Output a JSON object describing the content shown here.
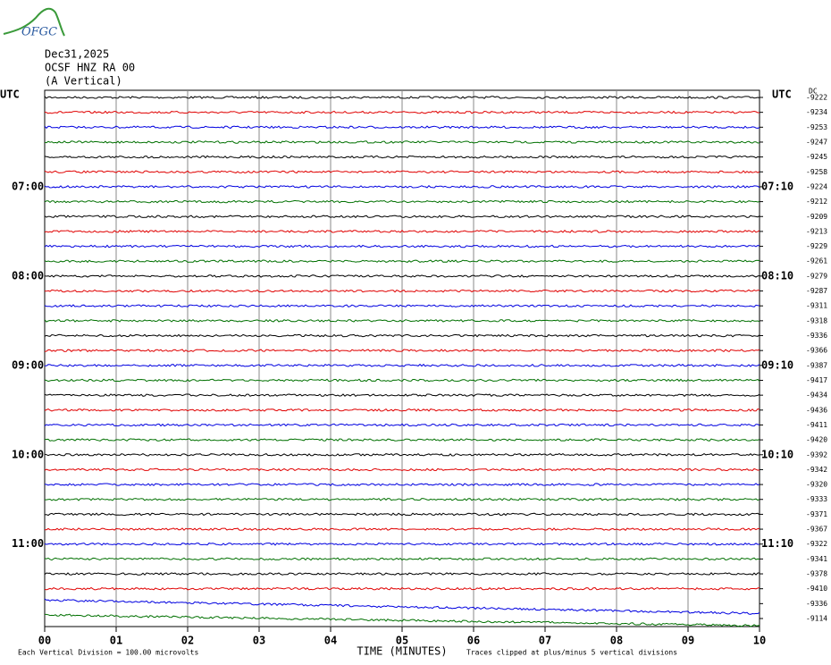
{
  "header": {
    "logo": "OFGC",
    "date": "Dec31,2025",
    "station": "OCSF HNZ RA 00",
    "component": "(A Vertical)"
  },
  "axes": {
    "left_title": "UTC",
    "right_title": "UTC",
    "dc_title": "DC",
    "left_hours": [
      "07:00",
      "08:00",
      "09:00",
      "10:00",
      "11:00"
    ],
    "right_hours": [
      "07:10",
      "08:10",
      "09:10",
      "10:10",
      "11:10"
    ],
    "x_ticks": [
      "00",
      "01",
      "02",
      "03",
      "04",
      "05",
      "06",
      "07",
      "08",
      "09",
      "10"
    ],
    "x_title": "TIME (MINUTES)"
  },
  "dc_offsets": [
    "-9222",
    "-9234",
    "-9253",
    "-9247",
    "-9245",
    "-9258",
    "-9224",
    "-9212",
    "-9209",
    "-9213",
    "-9229",
    "-9261",
    "-9279",
    "-9287",
    "-9311",
    "-9318",
    "-9336",
    "-9366",
    "-9387",
    "-9417",
    "-9434",
    "-9436",
    "-9411",
    "-9420",
    "-9392",
    "-9342",
    "-9320",
    "-9333",
    "-9371",
    "-9367",
    "-9322",
    "-9341",
    "-9378",
    "-9410",
    "-9336",
    "-9114"
  ],
  "trace_colors": [
    "#000000",
    "#e00000",
    "#0000e0",
    "#007000"
  ],
  "footer": {
    "scale": "Each Vertical Division =  100.00 microvolts",
    "clip": "Traces clipped at plus/minus 5 vertical divisions"
  }
}
